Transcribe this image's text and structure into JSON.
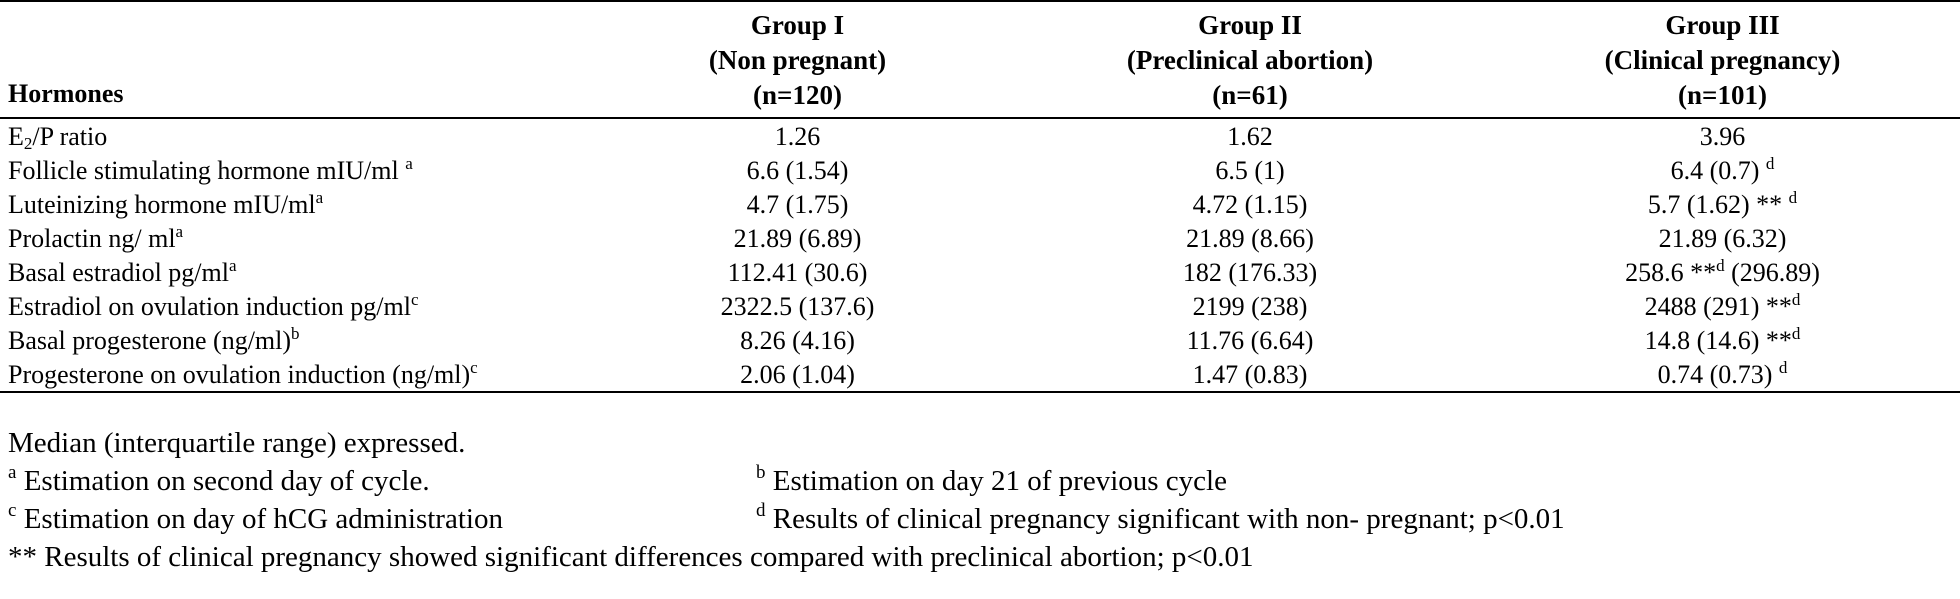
{
  "table": {
    "header": {
      "label": "Hormones",
      "groups": [
        {
          "name": "Group I",
          "desc": "(Non pregnant)",
          "n": "(n=120)"
        },
        {
          "name": "Group II",
          "desc": "(Preclinical abortion)",
          "n": "(n=61)"
        },
        {
          "name": "Group III",
          "desc": "(Clinical pregnancy)",
          "n": "(n=101)"
        }
      ]
    },
    "rows": [
      {
        "label_pre": "E",
        "label_sub": "2",
        "label_main": "/P ratio",
        "label_sup": "",
        "g1": "1.26",
        "g1_sup": "",
        "g2": "1.62",
        "g2_sup": "",
        "g3": "3.96",
        "g3_sup": "",
        "g3_post": ""
      },
      {
        "label_pre": "",
        "label_sub": "",
        "label_main": "Follicle stimulating hormone mIU/ml ",
        "label_sup": "a",
        "g1": "6.6 (1.54)",
        "g1_sup": "",
        "g2": "6.5 (1)",
        "g2_sup": "",
        "g3": "6.4 (0.7) ",
        "g3_sup": "d",
        "g3_post": ""
      },
      {
        "label_pre": "",
        "label_sub": "",
        "label_main": "Luteinizing hormone mIU/ml",
        "label_sup": "a",
        "g1": "4.7 (1.75)",
        "g1_sup": "",
        "g2": "4.72 (1.15)",
        "g2_sup": "",
        "g3": "5.7 (1.62) ** ",
        "g3_sup": "d",
        "g3_post": ""
      },
      {
        "label_pre": "",
        "label_sub": "",
        "label_main": "Prolactin  ng/ ml",
        "label_sup": "a",
        "g1": "21.89 (6.89)",
        "g1_sup": "",
        "g2": "21.89 (8.66)",
        "g2_sup": "",
        "g3": "21.89 (6.32)",
        "g3_sup": "",
        "g3_post": ""
      },
      {
        "label_pre": "",
        "label_sub": "",
        "label_main": "Basal estradiol pg/ml",
        "label_sup": "a",
        "g1": "112.41 (30.6)",
        "g1_sup": "",
        "g2": "182 (176.33)",
        "g2_sup": "",
        "g3": "258.6 **",
        "g3_sup": "d",
        "g3_post": " (296.89)"
      },
      {
        "label_pre": "",
        "label_sub": "",
        "label_main": "Estradiol on ovulation induction pg/ml",
        "label_sup": "c",
        "g1": "2322.5 (137.6)",
        "g1_sup": "",
        "g2": "2199 (238)",
        "g2_sup": "",
        "g3": "2488 (291) **",
        "g3_sup": "d",
        "g3_post": ""
      },
      {
        "label_pre": "",
        "label_sub": "",
        "label_main": "Basal progesterone  (ng/ml)",
        "label_sup": "b",
        "g1": "8.26 (4.16)",
        "g1_sup": "",
        "g2": "11.76 (6.64)",
        "g2_sup": "",
        "g3": "14.8 (14.6) **",
        "g3_sup": "d",
        "g3_post": ""
      },
      {
        "label_pre": "",
        "label_sub": "",
        "label_main": "Progesterone on ovulation induction (ng/ml)",
        "label_sup": "c",
        "g1": "2.06 (1.04)",
        "g1_sup": "",
        "g2": "1.47 (0.83)",
        "g2_sup": "",
        "g3": "0.74 (0.73) ",
        "g3_sup": "d",
        "g3_post": ""
      }
    ]
  },
  "notes": {
    "median": "Median (interquartile range) expressed.",
    "a_mark": "a",
    "a_text": " Estimation on second day of cycle.",
    "b_mark": "b",
    "b_text": " Estimation on day 21 of previous cycle",
    "c_mark": "c",
    "c_text": " Estimation on day of hCG administration",
    "d_mark": "d",
    "d_text": " Results of clinical pregnancy significant with non- pregnant; p<0.01",
    "double_star": "** Results of clinical pregnancy showed significant differences compared with preclinical abortion; p<0.01"
  }
}
